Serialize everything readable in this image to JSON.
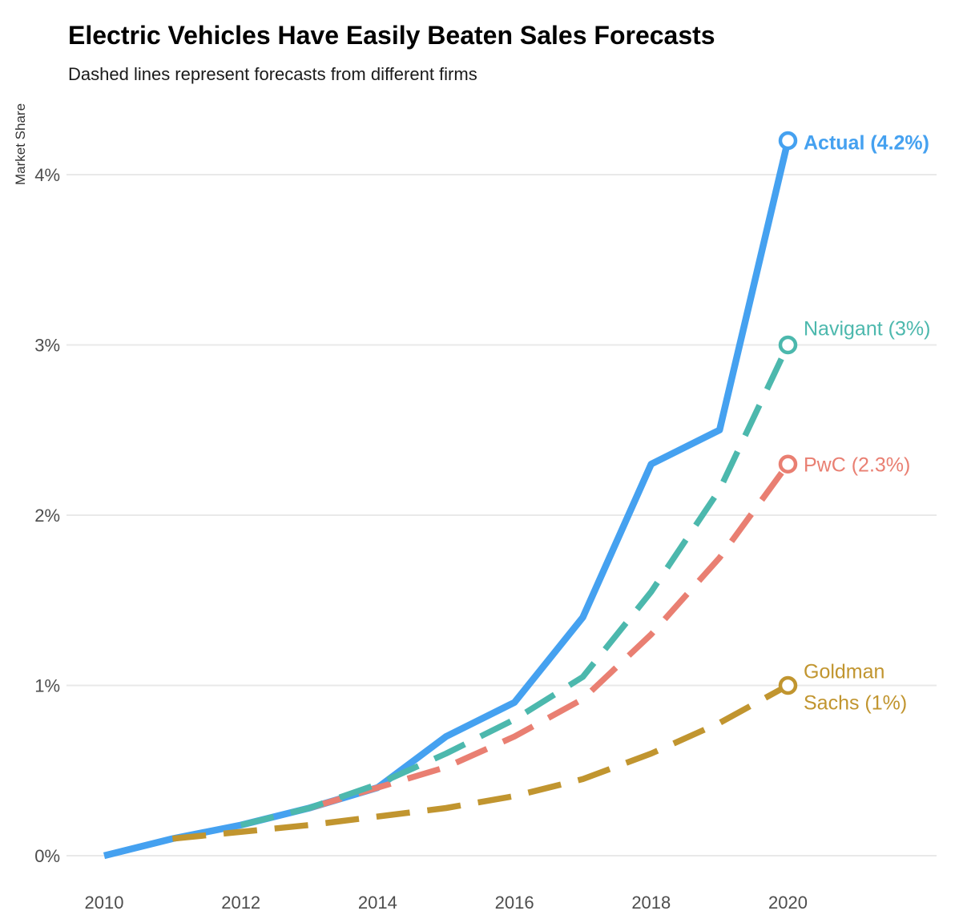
{
  "title": "Electric Vehicles Have Easily Beaten Sales Forecasts",
  "subtitle": "Dashed lines represent forecasts from different firms",
  "colors": {
    "actual": "#45A1F0",
    "navigant": "#4CB8AD",
    "pwc": "#E97F72",
    "goldman": "#C1952F",
    "gridline": "#E9E9E9",
    "axis_text": "#4D4D4D",
    "title_text": "#000000",
    "subtitle_text": "#1A1A1A",
    "background": "#FFFFFF"
  },
  "chart_data": {
    "type": "line",
    "title": "Electric Vehicles Have Easily Beaten Sales Forecasts",
    "subtitle": "Dashed lines represent forecasts from different firms",
    "xlabel": "",
    "ylabel": "Market Share",
    "x": [
      2010,
      2011,
      2012,
      2013,
      2014,
      2015,
      2016,
      2017,
      2018,
      2019,
      2020
    ],
    "x_tick_labels": [
      "2010",
      "2012",
      "2014",
      "2016",
      "2018",
      "2020"
    ],
    "x_ticks": [
      2010,
      2012,
      2014,
      2016,
      2018,
      2020
    ],
    "y_tick_labels": [
      "0%",
      "1%",
      "2%",
      "3%",
      "4%"
    ],
    "y_ticks": [
      0,
      1,
      2,
      3,
      4
    ],
    "ylim": [
      0,
      4.4
    ],
    "grid": "horizontal",
    "legend_position": "right-end-labels",
    "series": [
      {
        "name": "Actual",
        "label": "Actual (4.2%)",
        "color": "#45A1F0",
        "dashed": false,
        "bold_label": true,
        "end_value": 4.2,
        "values": [
          0,
          0.1,
          0.18,
          0.28,
          0.4,
          0.7,
          0.9,
          1.4,
          2.3,
          2.5,
          4.2
        ]
      },
      {
        "name": "Navigant",
        "label": "Navigant (3%)",
        "color": "#4CB8AD",
        "dashed": true,
        "bold_label": false,
        "end_value": 3.0,
        "values": [
          null,
          null,
          0.18,
          0.28,
          0.42,
          0.6,
          0.8,
          1.05,
          1.55,
          2.15,
          3.0
        ]
      },
      {
        "name": "PwC",
        "label": "PwC (2.3%)",
        "color": "#E97F72",
        "dashed": true,
        "bold_label": false,
        "end_value": 2.3,
        "values": [
          null,
          null,
          null,
          0.28,
          0.4,
          0.52,
          0.7,
          0.92,
          1.3,
          1.75,
          2.3
        ]
      },
      {
        "name": "Goldman Sachs",
        "label": "Goldman Sachs (1%)",
        "label_lines": [
          "Goldman",
          "Sachs (1%)"
        ],
        "color": "#C1952F",
        "dashed": true,
        "bold_label": false,
        "end_value": 1.0,
        "values": [
          null,
          0.1,
          0.14,
          0.18,
          0.23,
          0.28,
          0.35,
          0.45,
          0.6,
          0.78,
          1.0
        ]
      }
    ]
  }
}
